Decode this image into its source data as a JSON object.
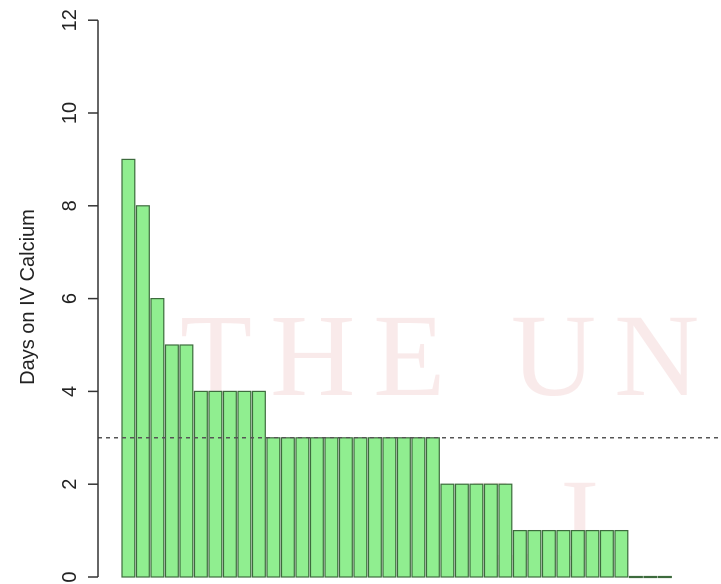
{
  "chart_data": {
    "type": "bar",
    "title": "",
    "xlabel": "",
    "ylabel": "Days on IV Calcium",
    "ylim": [
      0,
      12
    ],
    "yticks": [
      0,
      2,
      4,
      6,
      8,
      10,
      12
    ],
    "values": [
      9,
      8,
      6,
      5,
      5,
      4,
      4,
      4,
      4,
      4,
      3,
      3,
      3,
      3,
      3,
      3,
      3,
      3,
      3,
      3,
      3,
      3,
      2,
      2,
      2,
      2,
      2,
      1,
      1,
      1,
      1,
      1,
      1,
      1,
      1,
      0,
      0,
      0
    ],
    "reference_line": {
      "y": 3,
      "style": "dashed"
    },
    "bar_color": "#90ee90",
    "bar_edge_color": "#3d6b3d",
    "grid": false,
    "legend": "none"
  },
  "watermark": {
    "text_lines": [
      "THE UNI",
      "LI"
    ],
    "color": "#e5a3a3"
  }
}
